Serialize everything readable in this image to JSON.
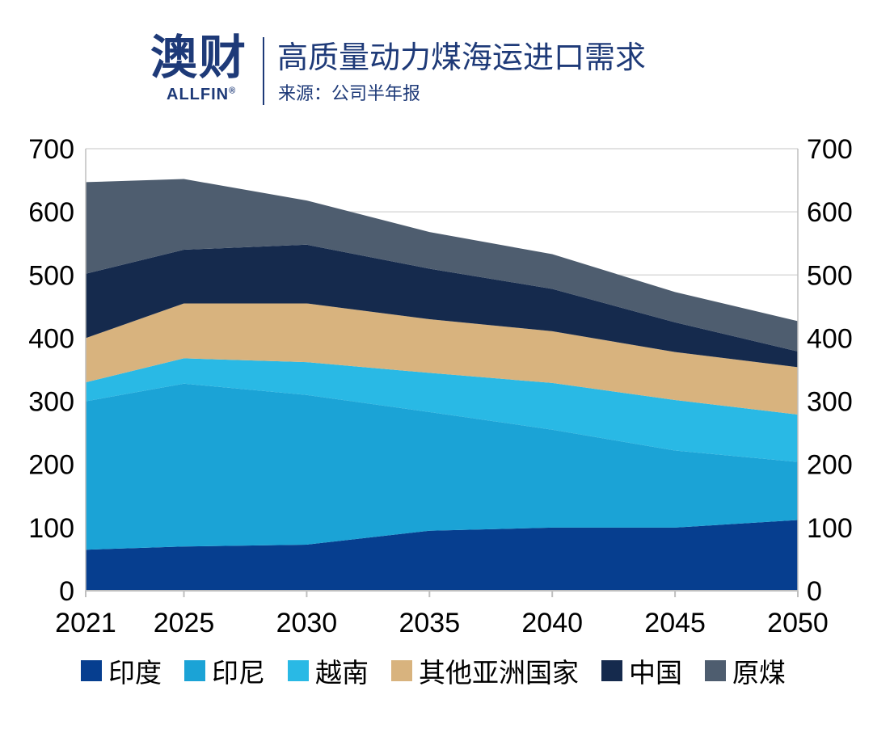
{
  "header": {
    "logo_cn": "澳财",
    "logo_en": "ALLFIN",
    "logo_mark": "®",
    "title": "高质量动力煤海运进口需求",
    "source": "来源：公司半年报"
  },
  "colors": {
    "brand": "#1e3a78",
    "grid": "#d9d9d9",
    "印度": "#063e8f",
    "印尼": "#1ba3d6",
    "越南": "#29b9e5",
    "其他亚洲国家": "#d8b37e",
    "中国": "#152a4d",
    "原煤": "#4e5d6f"
  },
  "chart_data": {
    "type": "area",
    "stacked": true,
    "x": [
      2021,
      2025,
      2030,
      2035,
      2040,
      2045,
      2050
    ],
    "ylim": [
      0,
      700
    ],
    "yticks": [
      0,
      100,
      200,
      300,
      400,
      500,
      600,
      700
    ],
    "dual_y_axis": true,
    "grid": true,
    "legend_position": "bottom",
    "series": [
      {
        "name": "印度",
        "values": [
          65,
          70,
          73,
          95,
          100,
          100,
          112
        ]
      },
      {
        "name": "印尼",
        "values": [
          235,
          258,
          237,
          188,
          155,
          122,
          92
        ]
      },
      {
        "name": "越南",
        "values": [
          30,
          40,
          52,
          62,
          74,
          80,
          75
        ]
      },
      {
        "name": "其他亚洲国家",
        "values": [
          70,
          87,
          93,
          85,
          82,
          76,
          75
        ]
      },
      {
        "name": "中国",
        "values": [
          102,
          85,
          93,
          80,
          67,
          47,
          25
        ]
      },
      {
        "name": "原煤",
        "values": [
          145,
          112,
          70,
          58,
          55,
          48,
          48
        ]
      }
    ]
  }
}
